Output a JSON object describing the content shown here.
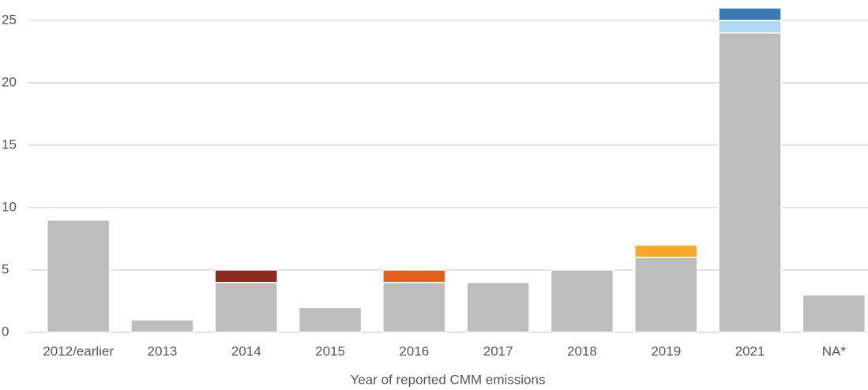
{
  "chart_data": {
    "type": "stacked_bar",
    "x_label": "Year of reported CMM emissions",
    "categories": [
      "2012/earlier",
      "2013",
      "2014",
      "2015",
      "2016",
      "2017",
      "2018",
      "2019",
      "2021",
      "NA*"
    ],
    "series": [
      {
        "color": "#bdbdbd",
        "values": [
          9,
          1,
          4,
          2,
          4,
          4,
          5,
          6,
          24,
          3
        ]
      },
      {
        "color": "#8b2b1e",
        "values": [
          0,
          0,
          1,
          0,
          0,
          0,
          0,
          0,
          0,
          0
        ]
      },
      {
        "color": "#e2601d",
        "values": [
          0,
          0,
          0,
          0,
          1,
          0,
          0,
          0,
          0,
          0
        ]
      },
      {
        "color": "#f5a82a",
        "values": [
          0,
          0,
          0,
          0,
          0,
          0,
          0,
          1,
          0,
          0
        ]
      },
      {
        "color": "#aed9f4",
        "values": [
          0,
          0,
          0,
          0,
          0,
          0,
          0,
          0,
          1,
          0
        ]
      },
      {
        "color": "#3a79b1",
        "values": [
          0,
          0,
          0,
          0,
          0,
          0,
          0,
          0,
          1,
          0
        ]
      }
    ],
    "ylim": [
      0,
      26
    ],
    "yticks": [
      0,
      5,
      10,
      15,
      20,
      25
    ],
    "grid": true
  }
}
